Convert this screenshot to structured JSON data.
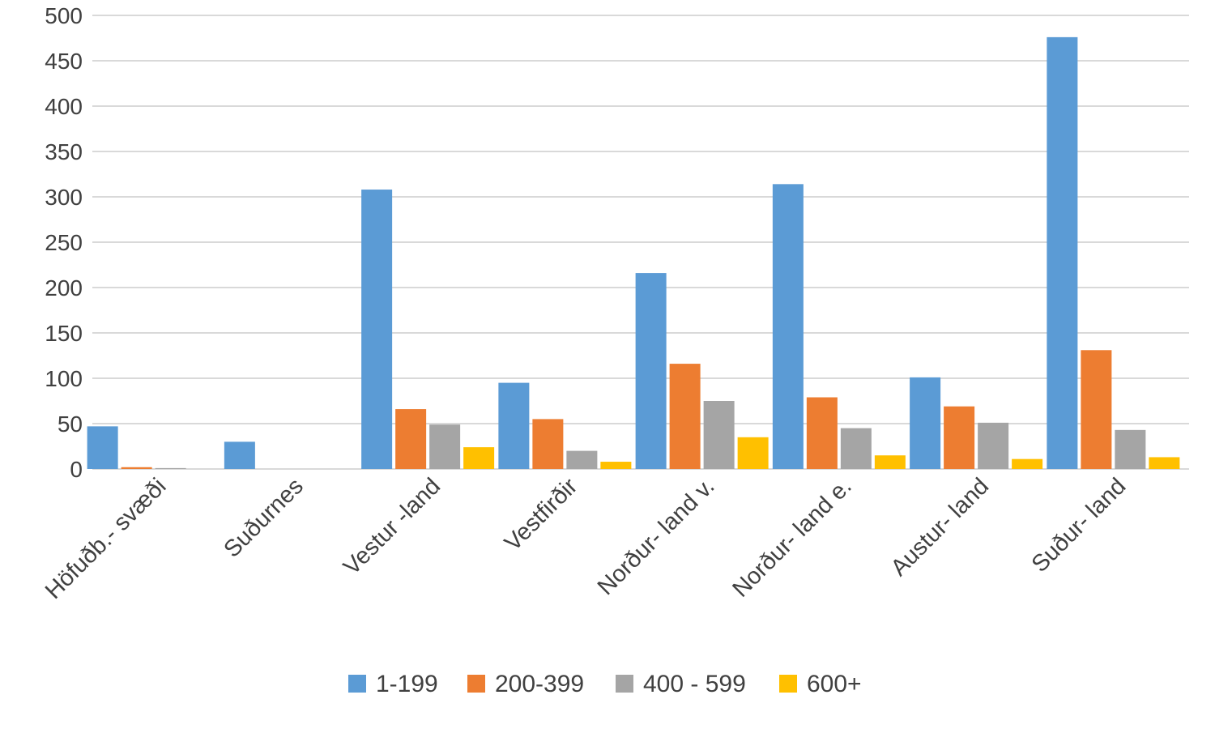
{
  "chart_data": {
    "type": "bar",
    "categories": [
      "Höfuðb.- svæði",
      "Suðurnes",
      "Vestur -land",
      "Vestfirðir",
      "Norður- land v.",
      "Norður- land e.",
      "Austur- land",
      "Suður- land"
    ],
    "series": [
      {
        "name": "1-199",
        "color": "#5B9BD5",
        "values": [
          47,
          30,
          308,
          95,
          216,
          314,
          101,
          476
        ]
      },
      {
        "name": "200-399",
        "color": "#ED7D31",
        "values": [
          2,
          0,
          66,
          55,
          116,
          79,
          69,
          131
        ]
      },
      {
        "name": "400 - 599",
        "color": "#A5A5A5",
        "values": [
          1,
          0,
          49,
          20,
          75,
          45,
          51,
          43
        ]
      },
      {
        "name": "600+",
        "color": "#FFC000",
        "values": [
          0,
          0,
          24,
          8,
          35,
          15,
          11,
          13
        ]
      }
    ],
    "ylim": [
      0,
      500
    ],
    "yticks": [
      0,
      50,
      100,
      150,
      200,
      250,
      300,
      350,
      400,
      450,
      500
    ],
    "grid": true,
    "legend": "bottom",
    "title": "",
    "xlabel": "",
    "ylabel": ""
  }
}
